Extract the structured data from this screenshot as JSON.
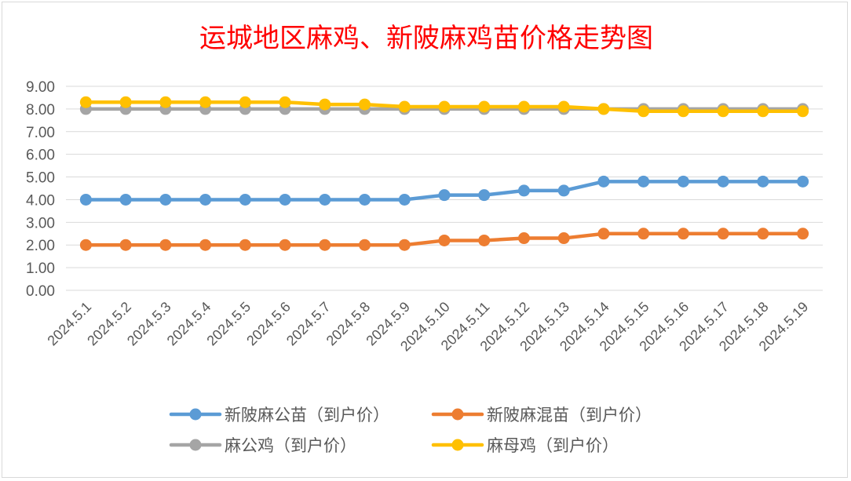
{
  "chart_data": {
    "type": "line",
    "title": "运城地区麻鸡、新陂麻鸡苗价格走势图",
    "xlabel": "",
    "ylabel": "",
    "ylim": [
      0,
      9
    ],
    "y_ticks": [
      "0.00",
      "1.00",
      "2.00",
      "3.00",
      "4.00",
      "5.00",
      "6.00",
      "7.00",
      "8.00",
      "9.00"
    ],
    "grid": true,
    "legend_position": "bottom",
    "categories": [
      "2024.5.1",
      "2024.5.2",
      "2024.5.3",
      "2024.5.4",
      "2024.5.5",
      "2024.5.6",
      "2024.5.7",
      "2024.5.8",
      "2024.5.9",
      "2024.5.10",
      "2024.5.11",
      "2024.5.12",
      "2024.5.13",
      "2024.5.14",
      "2024.5.15",
      "2024.5.16",
      "2024.5.17",
      "2024.5.18",
      "2024.5.19"
    ],
    "series": [
      {
        "name": "新陂麻公苗（到户价）",
        "color": "#5b9bd5",
        "values": [
          4.0,
          4.0,
          4.0,
          4.0,
          4.0,
          4.0,
          4.0,
          4.0,
          4.0,
          4.2,
          4.2,
          4.4,
          4.4,
          4.8,
          4.8,
          4.8,
          4.8,
          4.8,
          4.8
        ]
      },
      {
        "name": "新陂麻混苗（到户价）",
        "color": "#ed7d31",
        "values": [
          2.0,
          2.0,
          2.0,
          2.0,
          2.0,
          2.0,
          2.0,
          2.0,
          2.0,
          2.2,
          2.2,
          2.3,
          2.3,
          2.5,
          2.5,
          2.5,
          2.5,
          2.5,
          2.5
        ]
      },
      {
        "name": "麻公鸡（到户价）",
        "color": "#a5a5a5",
        "values": [
          8.0,
          8.0,
          8.0,
          8.0,
          8.0,
          8.0,
          8.0,
          8.0,
          8.0,
          8.0,
          8.0,
          8.0,
          8.0,
          8.0,
          8.0,
          8.0,
          8.0,
          8.0,
          8.0
        ]
      },
      {
        "name": "麻母鸡（到户价）",
        "color": "#ffc000",
        "values": [
          8.3,
          8.3,
          8.3,
          8.3,
          8.3,
          8.3,
          8.2,
          8.2,
          8.1,
          8.1,
          8.1,
          8.1,
          8.1,
          8.0,
          7.9,
          7.9,
          7.9,
          7.9,
          7.9
        ]
      }
    ]
  },
  "colors": {
    "title": "#ff0000",
    "gridline": "#d9d9d9",
    "tick_text": "#595959",
    "frame_border": "#d9d9d9"
  }
}
